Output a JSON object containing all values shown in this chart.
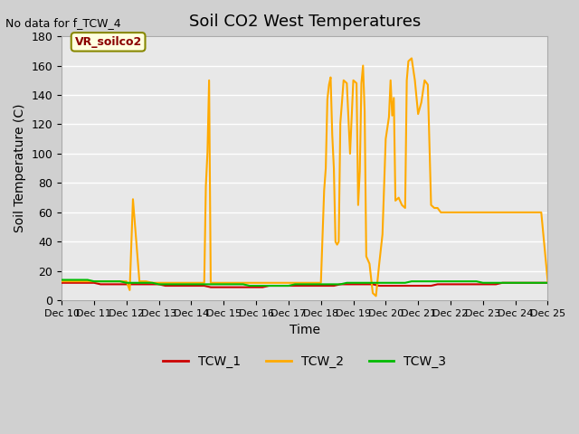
{
  "title": "Soil CO2 West Temperatures",
  "xlabel": "Time",
  "ylabel": "Soil Temperature (C)",
  "no_data_text": "No data for f_TCW_4",
  "annotation_text": "VR_soilco2",
  "ylim": [
    0,
    180
  ],
  "xlim": [
    0,
    15
  ],
  "xtick_labels": [
    "Dec 10",
    "Dec 11",
    "Dec 12",
    "Dec 13",
    "Dec 14",
    "Dec 15",
    "Dec 16",
    "Dec 17",
    "Dec 18",
    "Dec 19",
    "Dec 20",
    "Dec 21",
    "Dec 22",
    "Dec 23",
    "Dec 24",
    "Dec 25"
  ],
  "ytick_values": [
    0,
    20,
    40,
    60,
    80,
    100,
    120,
    140,
    160,
    180
  ],
  "tcw1_color": "#cc0000",
  "tcw2_color": "#ffaa00",
  "tcw3_color": "#00bb00",
  "tcw1_x": [
    0,
    0.2,
    0.4,
    0.6,
    0.8,
    1,
    1.2,
    1.4,
    1.6,
    1.8,
    2,
    2.2,
    2.4,
    2.6,
    2.8,
    3,
    3.2,
    3.4,
    3.6,
    3.8,
    4,
    4.2,
    4.4,
    4.6,
    4.8,
    5,
    5.2,
    5.4,
    5.6,
    5.8,
    6,
    6.2,
    6.4,
    6.6,
    6.8,
    7,
    7.2,
    7.4,
    7.6,
    7.8,
    8,
    8.2,
    8.4,
    8.6,
    8.8,
    9,
    9.2,
    9.4,
    9.6,
    9.8,
    10,
    10.2,
    10.4,
    10.6,
    10.8,
    11,
    11.2,
    11.4,
    11.6,
    11.8,
    12,
    12.2,
    12.4,
    12.6,
    12.8,
    13,
    13.2,
    13.4,
    13.6,
    13.8,
    14,
    14.2,
    14.4,
    14.6,
    14.8,
    15
  ],
  "tcw1_y": [
    12,
    12,
    12,
    12,
    12,
    12,
    11,
    11,
    11,
    11,
    11,
    11,
    11,
    11,
    11,
    11,
    10,
    10,
    10,
    10,
    10,
    10,
    10,
    9,
    9,
    9,
    9,
    9,
    9,
    9,
    9,
    9,
    10,
    10,
    10,
    10,
    10,
    10,
    10,
    10,
    10,
    10,
    10,
    11,
    11,
    11,
    11,
    11,
    11,
    10,
    10,
    10,
    10,
    10,
    10,
    10,
    10,
    10,
    11,
    11,
    11,
    11,
    11,
    11,
    11,
    11,
    11,
    11,
    12,
    12,
    12,
    12,
    12,
    12,
    12,
    12
  ],
  "tcw2_x": [
    0,
    0.3,
    0.6,
    0.9,
    1.2,
    1.5,
    1.8,
    2.0,
    2.1,
    2.2,
    2.4,
    2.6,
    2.8,
    3.0,
    3.3,
    3.6,
    3.9,
    4.0,
    4.2,
    4.4,
    4.45,
    4.5,
    4.55,
    4.6,
    4.8,
    5.0,
    5.3,
    5.6,
    5.9,
    6.2,
    6.5,
    6.8,
    7.0,
    7.3,
    7.6,
    7.9,
    8.0,
    8.1,
    8.15,
    8.2,
    8.25,
    8.3,
    8.35,
    8.4,
    8.45,
    8.5,
    8.55,
    8.6,
    8.65,
    8.7,
    8.8,
    8.9,
    9.0,
    9.1,
    9.15,
    9.2,
    9.25,
    9.3,
    9.35,
    9.4,
    9.5,
    9.6,
    9.7,
    9.8,
    9.9,
    10.0,
    10.1,
    10.15,
    10.2,
    10.25,
    10.3,
    10.4,
    10.5,
    10.6,
    10.65,
    10.7,
    10.8,
    10.9,
    11.0,
    11.1,
    11.2,
    11.3,
    11.4,
    11.5,
    11.6,
    11.7,
    11.8,
    11.9,
    12.0,
    12.1,
    12.2,
    12.3,
    12.4,
    12.5,
    12.6,
    12.7,
    12.8,
    12.9,
    13.0,
    13.2,
    13.4,
    13.6,
    13.8,
    14.0,
    14.2,
    14.4,
    14.6,
    14.8,
    15.0
  ],
  "tcw2_y": [
    13,
    13,
    13,
    13,
    13,
    13,
    13,
    13,
    7,
    69,
    13,
    13,
    12,
    12,
    12,
    12,
    12,
    12,
    12,
    12,
    78,
    101,
    150,
    12,
    12,
    12,
    12,
    12,
    12,
    12,
    12,
    12,
    12,
    12,
    12,
    12,
    12,
    75,
    90,
    137,
    147,
    152,
    113,
    90,
    40,
    38,
    40,
    121,
    135,
    150,
    148,
    100,
    150,
    148,
    65,
    88,
    148,
    160,
    129,
    30,
    25,
    5,
    3,
    25,
    45,
    110,
    125,
    150,
    126,
    138,
    68,
    70,
    65,
    63,
    150,
    163,
    165,
    150,
    127,
    135,
    150,
    147,
    65,
    63,
    63,
    60,
    60,
    60,
    60,
    60,
    60,
    60,
    60,
    60,
    60,
    60,
    60,
    60,
    60,
    60,
    60,
    60,
    60,
    60,
    60,
    60,
    60,
    60,
    13
  ],
  "tcw3_x": [
    0,
    0.2,
    0.4,
    0.6,
    0.8,
    1,
    1.2,
    1.4,
    1.6,
    1.8,
    2,
    2.2,
    2.4,
    2.6,
    2.8,
    3,
    3.2,
    3.4,
    3.6,
    3.8,
    4,
    4.2,
    4.4,
    4.6,
    4.8,
    5,
    5.2,
    5.4,
    5.6,
    5.8,
    6,
    6.2,
    6.4,
    6.6,
    6.8,
    7,
    7.2,
    7.4,
    7.6,
    7.8,
    8,
    8.2,
    8.4,
    8.6,
    8.8,
    9,
    9.2,
    9.4,
    9.6,
    9.8,
    10,
    10.2,
    10.4,
    10.6,
    10.8,
    11,
    11.2,
    11.4,
    11.6,
    11.8,
    12,
    12.2,
    12.4,
    12.6,
    12.8,
    13,
    13.2,
    13.4,
    13.6,
    13.8,
    14,
    14.2,
    14.4,
    14.6,
    14.8,
    15
  ],
  "tcw3_y": [
    14,
    14,
    14,
    14,
    14,
    13,
    13,
    13,
    13,
    13,
    12,
    12,
    12,
    12,
    12,
    11,
    11,
    11,
    11,
    11,
    11,
    11,
    11,
    11,
    11,
    11,
    11,
    11,
    11,
    10,
    10,
    10,
    10,
    10,
    10,
    10,
    11,
    11,
    11,
    11,
    11,
    11,
    11,
    11,
    12,
    12,
    12,
    12,
    12,
    12,
    12,
    12,
    12,
    12,
    13,
    13,
    13,
    13,
    13,
    13,
    13,
    13,
    13,
    13,
    13,
    12,
    12,
    12,
    12,
    12,
    12,
    12,
    12,
    12,
    12,
    12
  ],
  "legend_tcw1": "TCW_1",
  "legend_tcw2": "TCW_2",
  "legend_tcw3": "TCW_3",
  "linewidth": 1.5
}
